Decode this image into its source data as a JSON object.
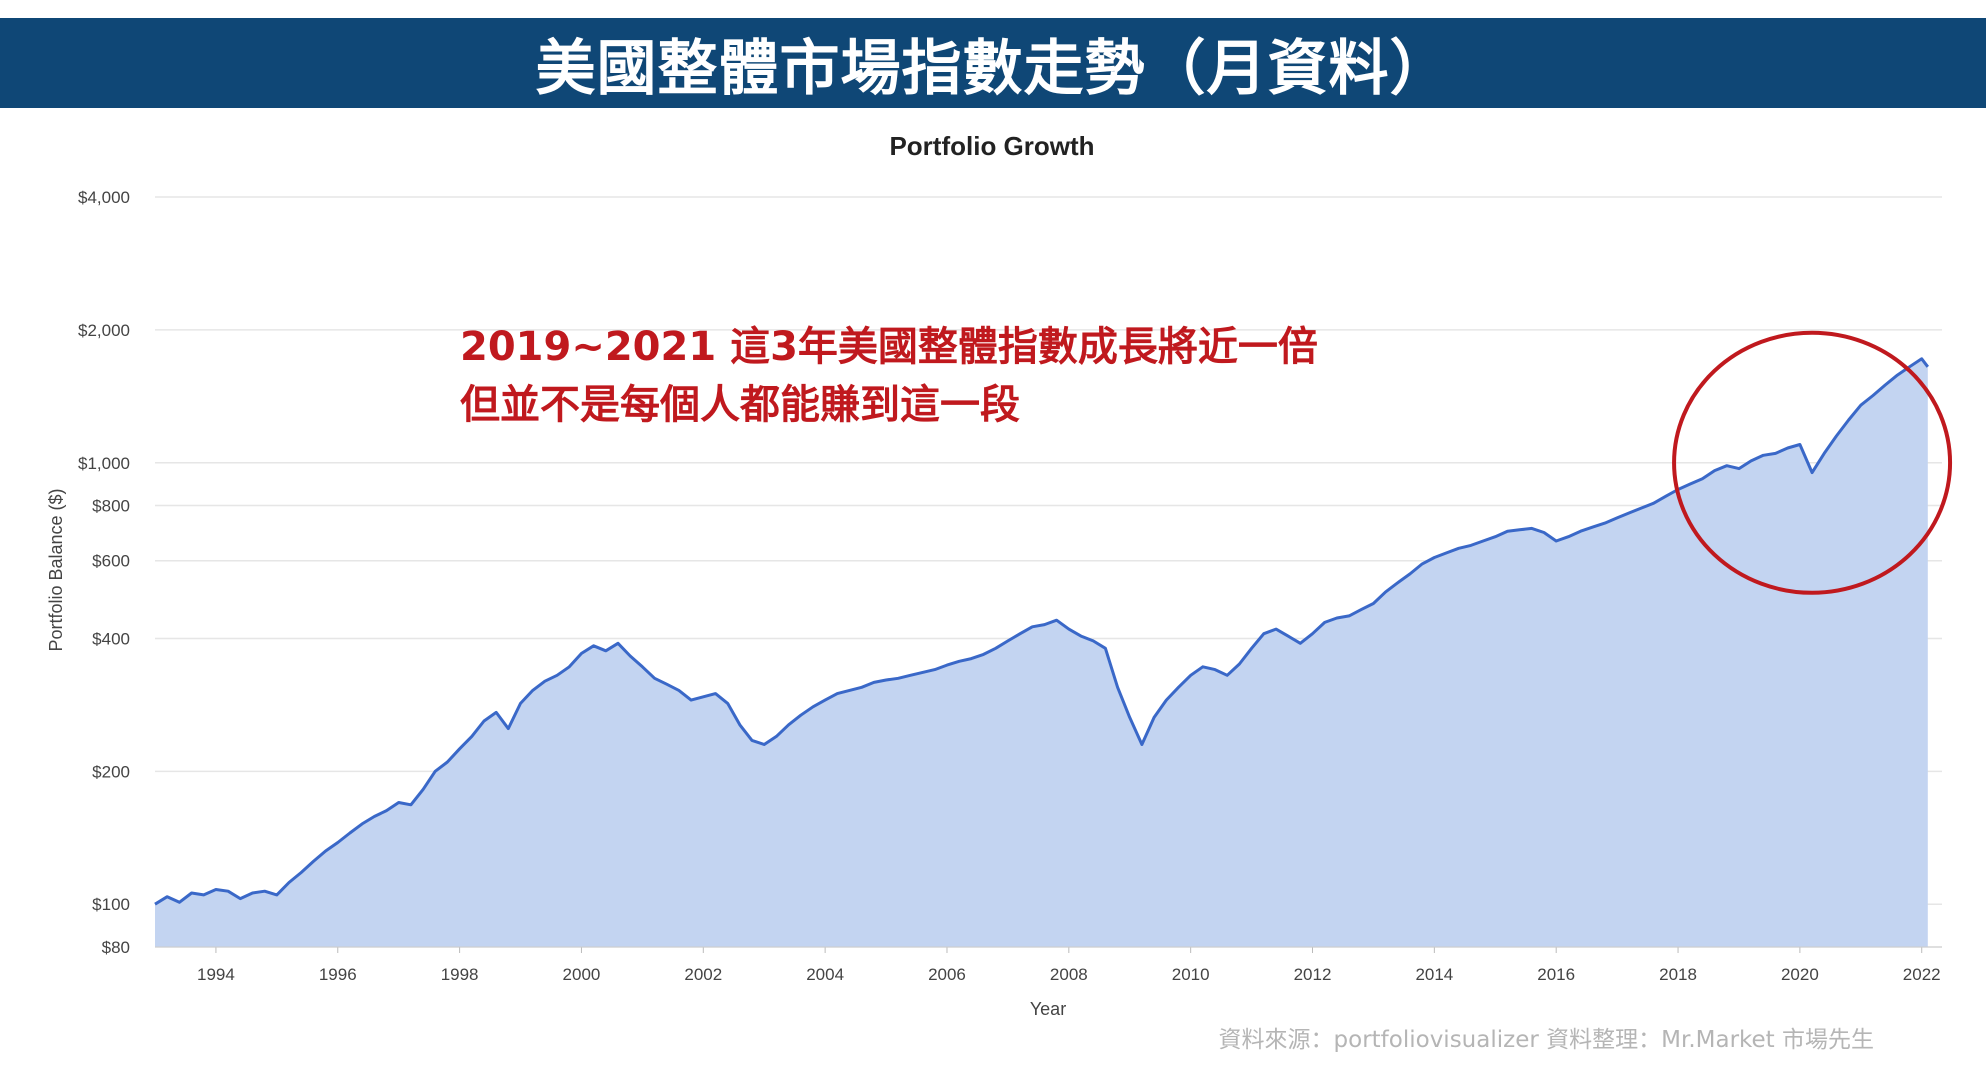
{
  "banner": {
    "title": "美國整體市場指數走勢（月資料）"
  },
  "annotation": {
    "line1": "2019~2021 這3年美國整體指數成長將近一倍",
    "line2": "但並不是每個人都能賺到這一段"
  },
  "source_note": "資料來源：portfoliovisualizer  資料整理：Mr.Market 市場先生",
  "colors": {
    "banner": "#0f4776",
    "line": "#3a68c8",
    "fill": "#c3d4f1",
    "highlight_circle": "#c0191e",
    "annotation": "#c0191e"
  },
  "chart_data": {
    "type": "area",
    "title": "Portfolio Growth",
    "xlabel": "Year",
    "ylabel": "Portfolio Balance ($)",
    "y_scale": "log",
    "ylim": [
      80,
      4000
    ],
    "xlim": [
      1993.0,
      2022.3
    ],
    "grid": true,
    "x_ticks": [
      {
        "value": 1994,
        "label": "1994"
      },
      {
        "value": 1996,
        "label": "1996"
      },
      {
        "value": 1998,
        "label": "1998"
      },
      {
        "value": 2000,
        "label": "2000"
      },
      {
        "value": 2002,
        "label": "2002"
      },
      {
        "value": 2004,
        "label": "2004"
      },
      {
        "value": 2006,
        "label": "2006"
      },
      {
        "value": 2008,
        "label": "2008"
      },
      {
        "value": 2010,
        "label": "2010"
      },
      {
        "value": 2012,
        "label": "2012"
      },
      {
        "value": 2014,
        "label": "2014"
      },
      {
        "value": 2016,
        "label": "2016"
      },
      {
        "value": 2018,
        "label": "2018"
      },
      {
        "value": 2020,
        "label": "2020"
      },
      {
        "value": 2022,
        "label": "2022"
      }
    ],
    "y_ticks": [
      {
        "value": 80,
        "label": "$80"
      },
      {
        "value": 100,
        "label": "$100"
      },
      {
        "value": 200,
        "label": "$200"
      },
      {
        "value": 400,
        "label": "$400"
      },
      {
        "value": 600,
        "label": "$600"
      },
      {
        "value": 800,
        "label": "$800"
      },
      {
        "value": 1000,
        "label": "$1,000"
      },
      {
        "value": 2000,
        "label": "$2,000"
      },
      {
        "value": 4000,
        "label": "$4,000"
      }
    ],
    "highlight": {
      "label": "2019~2021",
      "x_center": 2020.2,
      "y_center": 1000
    },
    "series": [
      {
        "points": [
          [
            1993.0,
            100
          ],
          [
            1993.2,
            104
          ],
          [
            1993.4,
            101
          ],
          [
            1993.6,
            106
          ],
          [
            1993.8,
            105
          ],
          [
            1994.0,
            108
          ],
          [
            1994.2,
            107
          ],
          [
            1994.4,
            103
          ],
          [
            1994.6,
            106
          ],
          [
            1994.8,
            107
          ],
          [
            1995.0,
            105
          ],
          [
            1995.2,
            112
          ],
          [
            1995.4,
            118
          ],
          [
            1995.6,
            125
          ],
          [
            1995.8,
            132
          ],
          [
            1996.0,
            138
          ],
          [
            1996.2,
            145
          ],
          [
            1996.4,
            152
          ],
          [
            1996.6,
            158
          ],
          [
            1996.8,
            163
          ],
          [
            1997.0,
            170
          ],
          [
            1997.2,
            168
          ],
          [
            1997.4,
            182
          ],
          [
            1997.6,
            200
          ],
          [
            1997.8,
            210
          ],
          [
            1998.0,
            225
          ],
          [
            1998.2,
            240
          ],
          [
            1998.4,
            260
          ],
          [
            1998.6,
            272
          ],
          [
            1998.8,
            250
          ],
          [
            1999.0,
            285
          ],
          [
            1999.2,
            305
          ],
          [
            1999.4,
            320
          ],
          [
            1999.6,
            330
          ],
          [
            1999.8,
            345
          ],
          [
            2000.0,
            370
          ],
          [
            2000.2,
            385
          ],
          [
            2000.4,
            375
          ],
          [
            2000.6,
            390
          ],
          [
            2000.8,
            365
          ],
          [
            2001.0,
            345
          ],
          [
            2001.2,
            325
          ],
          [
            2001.4,
            315
          ],
          [
            2001.6,
            305
          ],
          [
            2001.8,
            290
          ],
          [
            2002.0,
            295
          ],
          [
            2002.2,
            300
          ],
          [
            2002.4,
            285
          ],
          [
            2002.6,
            255
          ],
          [
            2002.8,
            235
          ],
          [
            2003.0,
            230
          ],
          [
            2003.2,
            240
          ],
          [
            2003.4,
            255
          ],
          [
            2003.6,
            268
          ],
          [
            2003.8,
            280
          ],
          [
            2004.0,
            290
          ],
          [
            2004.2,
            300
          ],
          [
            2004.4,
            305
          ],
          [
            2004.6,
            310
          ],
          [
            2004.8,
            318
          ],
          [
            2005.0,
            322
          ],
          [
            2005.2,
            325
          ],
          [
            2005.4,
            330
          ],
          [
            2005.6,
            335
          ],
          [
            2005.8,
            340
          ],
          [
            2006.0,
            348
          ],
          [
            2006.2,
            355
          ],
          [
            2006.4,
            360
          ],
          [
            2006.6,
            368
          ],
          [
            2006.8,
            380
          ],
          [
            2007.0,
            395
          ],
          [
            2007.2,
            410
          ],
          [
            2007.4,
            425
          ],
          [
            2007.6,
            430
          ],
          [
            2007.8,
            440
          ],
          [
            2008.0,
            420
          ],
          [
            2008.2,
            405
          ],
          [
            2008.4,
            395
          ],
          [
            2008.6,
            380
          ],
          [
            2008.8,
            310
          ],
          [
            2009.0,
            265
          ],
          [
            2009.2,
            230
          ],
          [
            2009.4,
            265
          ],
          [
            2009.6,
            290
          ],
          [
            2009.8,
            310
          ],
          [
            2010.0,
            330
          ],
          [
            2010.2,
            345
          ],
          [
            2010.4,
            340
          ],
          [
            2010.6,
            330
          ],
          [
            2010.8,
            350
          ],
          [
            2011.0,
            380
          ],
          [
            2011.2,
            410
          ],
          [
            2011.4,
            420
          ],
          [
            2011.6,
            405
          ],
          [
            2011.8,
            390
          ],
          [
            2012.0,
            410
          ],
          [
            2012.2,
            435
          ],
          [
            2012.4,
            445
          ],
          [
            2012.6,
            450
          ],
          [
            2012.8,
            465
          ],
          [
            2013.0,
            480
          ],
          [
            2013.2,
            510
          ],
          [
            2013.4,
            535
          ],
          [
            2013.6,
            560
          ],
          [
            2013.8,
            590
          ],
          [
            2014.0,
            610
          ],
          [
            2014.2,
            625
          ],
          [
            2014.4,
            640
          ],
          [
            2014.6,
            650
          ],
          [
            2014.8,
            665
          ],
          [
            2015.0,
            680
          ],
          [
            2015.2,
            700
          ],
          [
            2015.4,
            705
          ],
          [
            2015.6,
            710
          ],
          [
            2015.8,
            695
          ],
          [
            2016.0,
            665
          ],
          [
            2016.2,
            680
          ],
          [
            2016.4,
            700
          ],
          [
            2016.6,
            715
          ],
          [
            2016.8,
            730
          ],
          [
            2017.0,
            750
          ],
          [
            2017.2,
            770
          ],
          [
            2017.4,
            790
          ],
          [
            2017.6,
            810
          ],
          [
            2017.8,
            840
          ],
          [
            2018.0,
            870
          ],
          [
            2018.2,
            895
          ],
          [
            2018.4,
            920
          ],
          [
            2018.6,
            960
          ],
          [
            2018.8,
            985
          ],
          [
            2019.0,
            970
          ],
          [
            2019.2,
            1010
          ],
          [
            2019.4,
            1040
          ],
          [
            2019.6,
            1050
          ],
          [
            2019.8,
            1080
          ],
          [
            2020.0,
            1100
          ],
          [
            2020.2,
            950
          ],
          [
            2020.4,
            1050
          ],
          [
            2020.6,
            1150
          ],
          [
            2020.8,
            1250
          ],
          [
            2021.0,
            1350
          ],
          [
            2021.2,
            1420
          ],
          [
            2021.4,
            1500
          ],
          [
            2021.6,
            1580
          ],
          [
            2021.8,
            1650
          ],
          [
            2022.0,
            1720
          ],
          [
            2022.1,
            1650
          ]
        ]
      }
    ]
  }
}
